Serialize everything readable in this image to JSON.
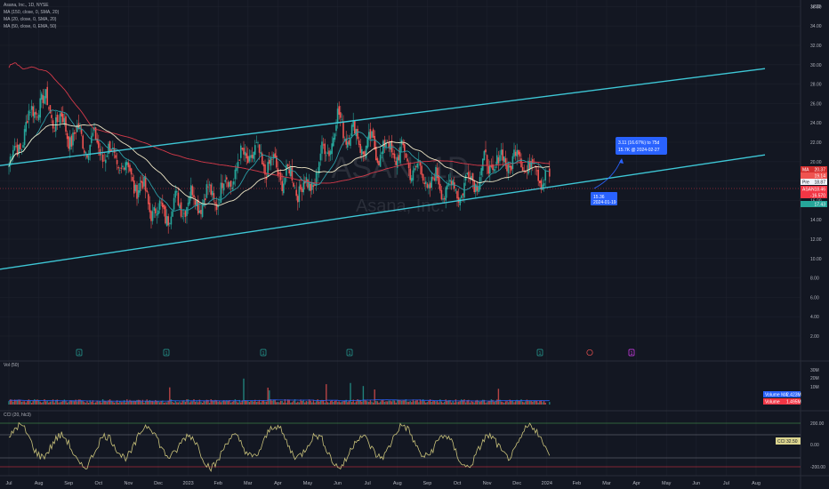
{
  "legend": {
    "symbol": "Asana, Inc., 1D, NYSE",
    "ma1": "MA (150, close, 0, SMA, 20)",
    "ma2": "MA (20, close, 0, SMA, 20)",
    "ma3": "MA (50, close, 0, EMA, 50)",
    "vol": "Vol (50)",
    "cci": "CCI (20, hlc3)"
  },
  "watermark": {
    "ticker": "ASAN, 1D",
    "name": "Asana, Inc."
  },
  "currency": "USD",
  "price_tags": [
    {
      "label": "MA",
      "value": "20.37",
      "color": "#d32f2f"
    },
    {
      "label": "",
      "value": "19.14",
      "color": "#ef5350"
    },
    {
      "label": "Pre",
      "value": "18.87",
      "color": "#f0f3fa"
    },
    {
      "label": "ASAN",
      "value": "18.46",
      "color": "#f23645"
    },
    {
      "label": "",
      "value": "-16.570",
      "color": "#f23645"
    },
    {
      "label": "",
      "value": "17.43",
      "color": "#26a69a"
    }
  ],
  "measure": {
    "line1": "3.11 (16.67%) to 75d",
    "line2": "15.7K @ 2024-02-27"
  },
  "current_marker": {
    "line1": "15.36",
    "line2": "2024-01-19"
  },
  "vol_tags": [
    {
      "label": "Volume MA",
      "value": "2.423M",
      "color": "#2962ff"
    },
    {
      "label": "Volume",
      "value": "1.495M",
      "color": "#f23645"
    }
  ],
  "cci_tag": {
    "label": "CCI",
    "value": "32.50"
  },
  "event_markers": [
    "1",
    "1",
    "1",
    "1",
    "1",
    "1"
  ],
  "chart_data": {
    "type": "candlestick",
    "y_ticks": [
      "36.00",
      "34.00",
      "32.00",
      "30.00",
      "28.00",
      "26.00",
      "24.00",
      "22.00",
      "20.00",
      "18.00",
      "16.00",
      "14.00",
      "12.00",
      "10.00",
      "8.00",
      "6.00",
      "4.00",
      "2.00"
    ],
    "x_ticks": [
      "Jul",
      "Aug",
      "Sep",
      "Oct",
      "Nov",
      "Dec",
      "2023",
      "Feb",
      "Mar",
      "Apr",
      "May",
      "Jun",
      "Jul",
      "Aug",
      "Sep",
      "Oct",
      "Nov",
      "Dec",
      "2024",
      "Feb",
      "Mar",
      "Apr",
      "May",
      "Jun",
      "Jul",
      "Aug"
    ],
    "y_range": [
      2,
      37
    ],
    "close_by_month": [
      {
        "month": "Jul 2022",
        "close": 19.5
      },
      {
        "month": "Aug 2022",
        "close": 26.5
      },
      {
        "month": "Sep 2022",
        "close": 23.0
      },
      {
        "month": "Oct 2022",
        "close": 21.5
      },
      {
        "month": "Nov 2022",
        "close": 19.0
      },
      {
        "month": "Dec 2022",
        "close": 14.5
      },
      {
        "month": "Jan 2023",
        "close": 16.0
      },
      {
        "month": "Feb 2023",
        "close": 16.5
      },
      {
        "month": "Mar 2023",
        "close": 21.0
      },
      {
        "month": "Apr 2023",
        "close": 19.0
      },
      {
        "month": "May 2023",
        "close": 17.0
      },
      {
        "month": "Jun 2023",
        "close": 24.0
      },
      {
        "month": "Jul 2023",
        "close": 21.5
      },
      {
        "month": "Aug 2023",
        "close": 21.0
      },
      {
        "month": "Sep 2023",
        "close": 18.0
      },
      {
        "month": "Oct 2023",
        "close": 17.0
      },
      {
        "month": "Nov 2023",
        "close": 19.5
      },
      {
        "month": "Dec 2023",
        "close": 20.5
      },
      {
        "month": "Jan 2024",
        "close": 18.46
      }
    ],
    "trend_lines": [
      {
        "name": "upper channel",
        "from": {
          "month": "Jul 2022",
          "price": 19.6
        },
        "to": {
          "month": "Aug 2024",
          "price": 29.6
        }
      },
      {
        "name": "lower channel",
        "from": {
          "month": "Jul 2022",
          "price": 8.9
        },
        "to": {
          "month": "Aug 2024",
          "price": 20.7
        }
      }
    ],
    "vol_ticks": [
      "30M",
      "20M",
      "10M"
    ],
    "cci_ticks": [
      "200.00",
      "0.00",
      "-200.00"
    ],
    "cci_levels": [
      100,
      -100
    ]
  }
}
